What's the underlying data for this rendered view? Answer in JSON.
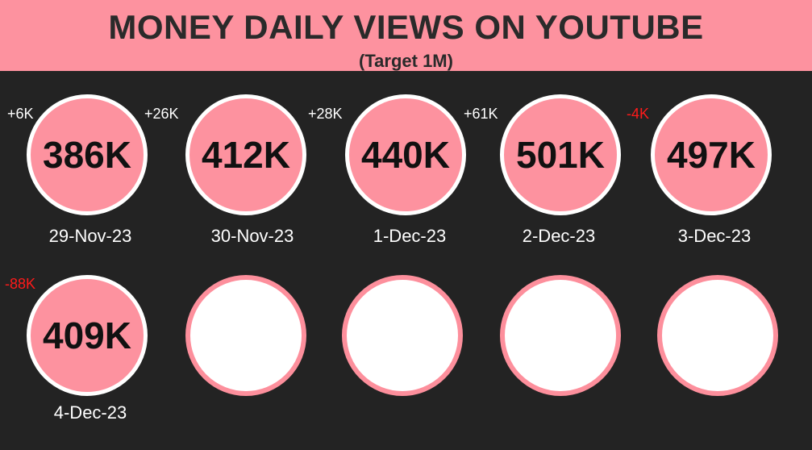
{
  "header": {
    "title": "MONEY DAILY VIEWS ON YOUTUBE",
    "subtitle": "(Target 1M)"
  },
  "colors": {
    "background": "#232323",
    "accent": "#fd929f",
    "negative": "#ff1a1a"
  },
  "days": [
    {
      "value": "386K",
      "date": "29-Nov-23",
      "delta": "+6K"
    },
    {
      "value": "412K",
      "date": "30-Nov-23",
      "delta": "+26K"
    },
    {
      "value": "440K",
      "date": "1-Dec-23",
      "delta": "+28K"
    },
    {
      "value": "501K",
      "date": "2-Dec-23",
      "delta": "+61K"
    },
    {
      "value": "497K",
      "date": "3-Dec-23",
      "delta": "-4K"
    },
    {
      "value": "409K",
      "date": "4-Dec-23",
      "delta": "-88K"
    }
  ]
}
